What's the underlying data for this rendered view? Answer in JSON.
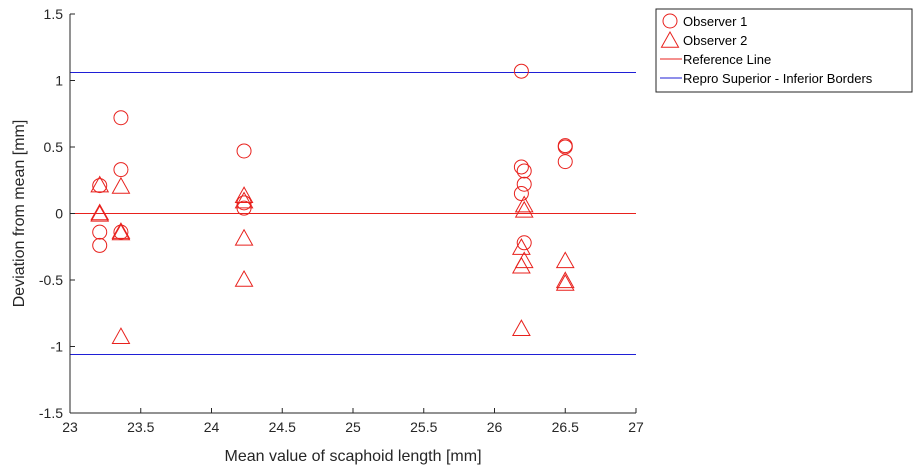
{
  "chart_data": {
    "type": "scatter",
    "xlabel": "Mean value of scaphoid length [mm]",
    "ylabel": "Deviation from mean [mm]",
    "xlim": [
      23,
      27
    ],
    "ylim": [
      -1.5,
      1.5
    ],
    "xticks": [
      23,
      23.5,
      24,
      24.5,
      25,
      25.5,
      26,
      26.5,
      27
    ],
    "xtick_labels": [
      "23",
      "23.5",
      "24",
      "24.5",
      "25",
      "25.5",
      "26",
      "26.5",
      "27"
    ],
    "yticks": [
      -1.5,
      -1,
      -0.5,
      0,
      0.5,
      1,
      1.5
    ],
    "ytick_labels": [
      "-1.5",
      "-1",
      "-0.5",
      "0",
      "0.5",
      "1",
      "1.5"
    ],
    "grid": false,
    "legend_position": "outside-top-right",
    "series": [
      {
        "name": "Observer 1",
        "marker": "circle",
        "color": "#e8211d",
        "points": [
          [
            23.21,
            0.21
          ],
          [
            23.21,
            -0.14
          ],
          [
            23.21,
            -0.24
          ],
          [
            23.36,
            0.72
          ],
          [
            23.36,
            0.33
          ],
          [
            23.36,
            -0.14
          ],
          [
            24.23,
            0.47
          ],
          [
            24.23,
            0.08
          ],
          [
            24.23,
            0.04
          ],
          [
            26.19,
            1.07
          ],
          [
            26.19,
            0.35
          ],
          [
            26.21,
            0.32
          ],
          [
            26.21,
            0.22
          ],
          [
            26.19,
            0.15
          ],
          [
            26.21,
            -0.22
          ],
          [
            26.5,
            0.51
          ],
          [
            26.5,
            0.5
          ],
          [
            26.5,
            0.39
          ]
        ]
      },
      {
        "name": "Observer 2",
        "marker": "triangle",
        "color": "#e8211d",
        "points": [
          [
            23.21,
            0.21
          ],
          [
            23.21,
            0.0
          ],
          [
            23.21,
            -0.01
          ],
          [
            23.36,
            0.2
          ],
          [
            23.36,
            -0.14
          ],
          [
            23.36,
            -0.15
          ],
          [
            23.36,
            -0.93
          ],
          [
            24.23,
            0.13
          ],
          [
            24.23,
            0.09
          ],
          [
            24.23,
            -0.19
          ],
          [
            24.23,
            -0.5
          ],
          [
            26.21,
            0.06
          ],
          [
            26.21,
            0.02
          ],
          [
            26.19,
            -0.26
          ],
          [
            26.21,
            -0.36
          ],
          [
            26.19,
            -0.4
          ],
          [
            26.19,
            -0.87
          ],
          [
            26.5,
            -0.36
          ],
          [
            26.5,
            -0.51
          ],
          [
            26.5,
            -0.53
          ]
        ]
      },
      {
        "name": "Reference Line",
        "marker": "line",
        "color": "#e8211d",
        "y": 0
      },
      {
        "name": "Repro Superior - Inferior Borders",
        "marker": "line",
        "color": "#1f1fd6",
        "y": [
          1.06,
          -1.06
        ]
      }
    ]
  }
}
